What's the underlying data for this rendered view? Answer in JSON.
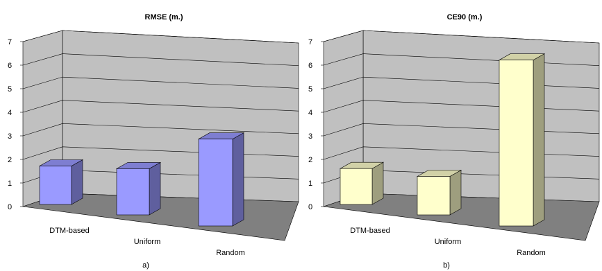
{
  "chart_data": [
    {
      "type": "bar",
      "title": "RMSE (m.)",
      "panel_label": "a)",
      "categories": [
        "DTM-based",
        "Uniform",
        "Random"
      ],
      "values": [
        1.5,
        1.8,
        3.3
      ],
      "ylim": [
        0,
        7
      ],
      "yticks": [
        "0",
        "1",
        "2",
        "3",
        "4",
        "5",
        "6",
        "7"
      ],
      "grid": true,
      "bar_color": "#9a9aff",
      "wall_color": "#c0c0c0",
      "floor_color": "#808080"
    },
    {
      "type": "bar",
      "title": "CE90 (m.)",
      "panel_label": "b)",
      "categories": [
        "DTM-based",
        "Uniform",
        "Random"
      ],
      "values": [
        1.4,
        1.5,
        6.3
      ],
      "ylim": [
        0,
        7
      ],
      "yticks": [
        "0",
        "1",
        "2",
        "3",
        "4",
        "5",
        "6",
        "7"
      ],
      "grid": true,
      "bar_color": "#ffffcc",
      "wall_color": "#c0c0c0",
      "floor_color": "#808080"
    }
  ]
}
